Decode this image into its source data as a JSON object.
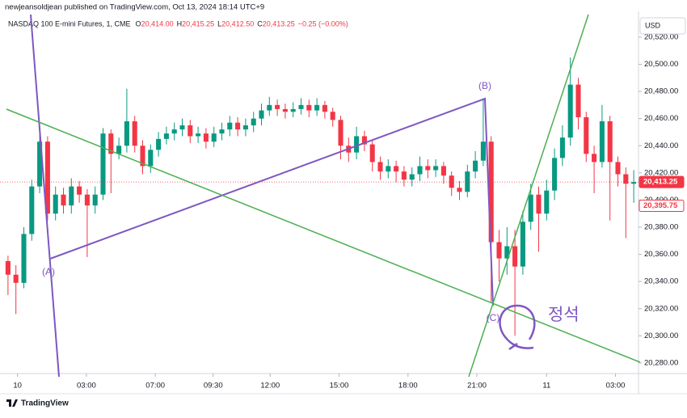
{
  "chart_data": {
    "type": "candlestick",
    "publisher": "newjeansoldjean published on TradingView.com, Oct 13, 2024 18:14 UTC+9",
    "symbol": "NASDAQ 100 E-mini Futures, 1, CME",
    "ohlc": [
      {
        "key": "O",
        "text": "20,414.00"
      },
      {
        "key": "H",
        "text": "20,415.25"
      },
      {
        "key": "L",
        "text": "20,412.50"
      },
      {
        "key": "C",
        "text": "20,413.25"
      }
    ],
    "change": "−0.25 (−0.00%)",
    "currency": "USD",
    "brand": "TradingView",
    "annotations": [
      "(A)",
      "(B)",
      "(C)",
      "정석"
    ],
    "up_color": "#089981",
    "down_color": "#f23645",
    "xlim": [
      -0.5,
      79.5
    ],
    "xticks": [
      {
        "value": 1.2,
        "label": "10"
      },
      {
        "value": 9.9,
        "label": "03:00"
      },
      {
        "value": 18.6,
        "label": "07:00"
      },
      {
        "value": 25.9,
        "label": "09:30"
      },
      {
        "value": 33.1,
        "label": "12:00"
      },
      {
        "value": 41.8,
        "label": "15:00"
      },
      {
        "value": 50.5,
        "label": "18:00"
      },
      {
        "value": 59.2,
        "label": "21:00"
      },
      {
        "value": 68.0,
        "label": "11"
      },
      {
        "value": 76.7,
        "label": "03:00"
      }
    ],
    "ylim": [
      20272.2,
      20539
    ],
    "yticks": [
      {
        "value": 20280,
        "label": "20,280.00"
      },
      {
        "value": 20300,
        "label": "20,300.00"
      },
      {
        "value": 20320,
        "label": "20,320.00"
      },
      {
        "value": 20340,
        "label": "20,340.00"
      },
      {
        "value": 20360,
        "label": "20,360.00"
      },
      {
        "value": 20380,
        "label": "20,380.00"
      },
      {
        "value": 20400,
        "label": "20,400.00"
      },
      {
        "value": 20420,
        "label": "20,420.00"
      },
      {
        "value": 20440,
        "label": "20,440.00"
      },
      {
        "value": 20460,
        "label": "20,460.00"
      },
      {
        "value": 20480,
        "label": "20,480.00"
      },
      {
        "value": 20500,
        "label": "20,500.00"
      },
      {
        "value": 20520,
        "label": "20,520.00"
      }
    ],
    "price_labels": [
      {
        "value": 20413.25,
        "label": "20,413.25"
      },
      {
        "value": 20395.75,
        "label": "20,395.75"
      }
    ],
    "open": [
      20355,
      20345,
      20339,
      20375,
      20410,
      20443,
      20390,
      20404,
      20396,
      20410,
      20404,
      20396,
      20404,
      20449,
      20434,
      20440,
      20458,
      20440,
      20425,
      20437,
      20445,
      20449,
      20452,
      20455,
      20447,
      20449,
      20443,
      20449,
      20452,
      20457,
      20452,
      20455,
      20460,
      20466,
      20470,
      20467,
      20465,
      20467,
      20470,
      20466,
      20470,
      20465,
      20459,
      20440,
      20435,
      20447,
      20441,
      20428,
      20421,
      20425,
      20421,
      20415,
      20419,
      20425,
      20422,
      20425,
      20418,
      20409,
      20406,
      20421,
      20429,
      20443,
      20369,
      20357,
      20366,
      20351,
      20384,
      20404,
      20390,
      20407,
      20431,
      20446,
      20485,
      20461,
      20434,
      20428,
      20458,
      20428,
      20419,
      20412
    ],
    "high": [
      20359,
      20352,
      20380,
      20415,
      20450,
      20447,
      20410,
      20409,
      20416,
      20414,
      20408,
      20410,
      20453,
      20452,
      20446,
      20482,
      20462,
      20444,
      20441,
      20450,
      20454,
      20457,
      20460,
      20459,
      20454,
      20453,
      20454,
      20457,
      20462,
      20461,
      20460,
      20465,
      20471,
      20476,
      20474,
      20471,
      20472,
      20475,
      20474,
      20475,
      20473,
      20468,
      20462,
      20446,
      20454,
      20451,
      20444,
      20432,
      20430,
      20429,
      20425,
      20424,
      20432,
      20430,
      20430,
      20428,
      20421,
      20414,
      20426,
      20436,
      20475,
      20447,
      20378,
      20380,
      20378,
      20392,
      20412,
      20410,
      20415,
      20438,
      20455,
      20505,
      20490,
      20465,
      20440,
      20470,
      20462,
      20432,
      20424,
      20422
    ],
    "low": [
      20330,
      20316,
      20335,
      20370,
      20405,
      20385,
      20385,
      20390,
      20390,
      20398,
      20358,
      20390,
      20400,
      20405,
      20430,
      20435,
      20435,
      20419,
      20420,
      20432,
      20441,
      20444,
      20447,
      20442,
      20442,
      20438,
      20439,
      20444,
      20447,
      20447,
      20447,
      20450,
      20455,
      20462,
      20462,
      20460,
      20461,
      20463,
      20461,
      20462,
      20460,
      20454,
      20430,
      20428,
      20430,
      20436,
      20421,
      20415,
      20416,
      20413,
      20410,
      20410,
      20414,
      20416,
      20417,
      20412,
      20403,
      20400,
      20402,
      20416,
      20425,
      20325,
      20340,
      20345,
      20300,
      20345,
      20378,
      20362,
      20385,
      20400,
      20425,
      20440,
      20452,
      20428,
      20405,
      20424,
      20385,
      20410,
      20372,
      20398
    ],
    "close": [
      20345,
      20339,
      20375,
      20410,
      20443,
      20390,
      20404,
      20396,
      20410,
      20404,
      20396,
      20404,
      20449,
      20434,
      20440,
      20458,
      20440,
      20425,
      20437,
      20445,
      20449,
      20452,
      20455,
      20447,
      20449,
      20443,
      20449,
      20452,
      20457,
      20452,
      20455,
      20460,
      20466,
      20470,
      20467,
      20465,
      20467,
      20470,
      20466,
      20470,
      20465,
      20459,
      20440,
      20435,
      20447,
      20441,
      20428,
      20421,
      20425,
      20421,
      20415,
      20419,
      20425,
      20422,
      20425,
      20418,
      20409,
      20406,
      20421,
      20429,
      20443,
      20369,
      20357,
      20366,
      20351,
      20384,
      20404,
      20390,
      20407,
      20431,
      20446,
      20485,
      20461,
      20434,
      20428,
      20458,
      20428,
      20419,
      20412,
      20413.25
    ]
  }
}
